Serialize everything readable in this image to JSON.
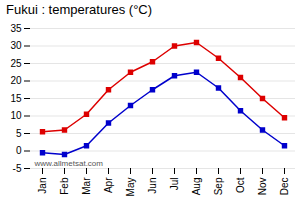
{
  "chart_data": {
    "type": "line",
    "title": "Fukui : temperatures (°C)",
    "categories": [
      "Jan",
      "Feb",
      "Mar",
      "Apr",
      "May",
      "Jun",
      "Jul",
      "Aug",
      "Sep",
      "Oct",
      "Nov",
      "Dec"
    ],
    "series": [
      {
        "color": "#dd0000",
        "marker": "square",
        "line_style": "solid",
        "values": [
          5.5,
          6.0,
          10.5,
          17.5,
          22.5,
          25.5,
          30.0,
          31.0,
          26.5,
          21.0,
          15.0,
          9.5
        ]
      },
      {
        "color": "#0000cc",
        "marker": "square",
        "line_style": "solid",
        "values": [
          -0.5,
          -1.0,
          1.5,
          8.0,
          13.0,
          17.5,
          21.5,
          22.5,
          18.0,
          11.5,
          6.0,
          1.5
        ]
      }
    ],
    "ylim": [
      -5,
      35
    ],
    "yticks": [
      -5,
      0,
      5,
      10,
      15,
      20,
      25,
      30,
      35
    ],
    "grid": true,
    "annotations": [
      "www.allmetsat.com"
    ]
  }
}
